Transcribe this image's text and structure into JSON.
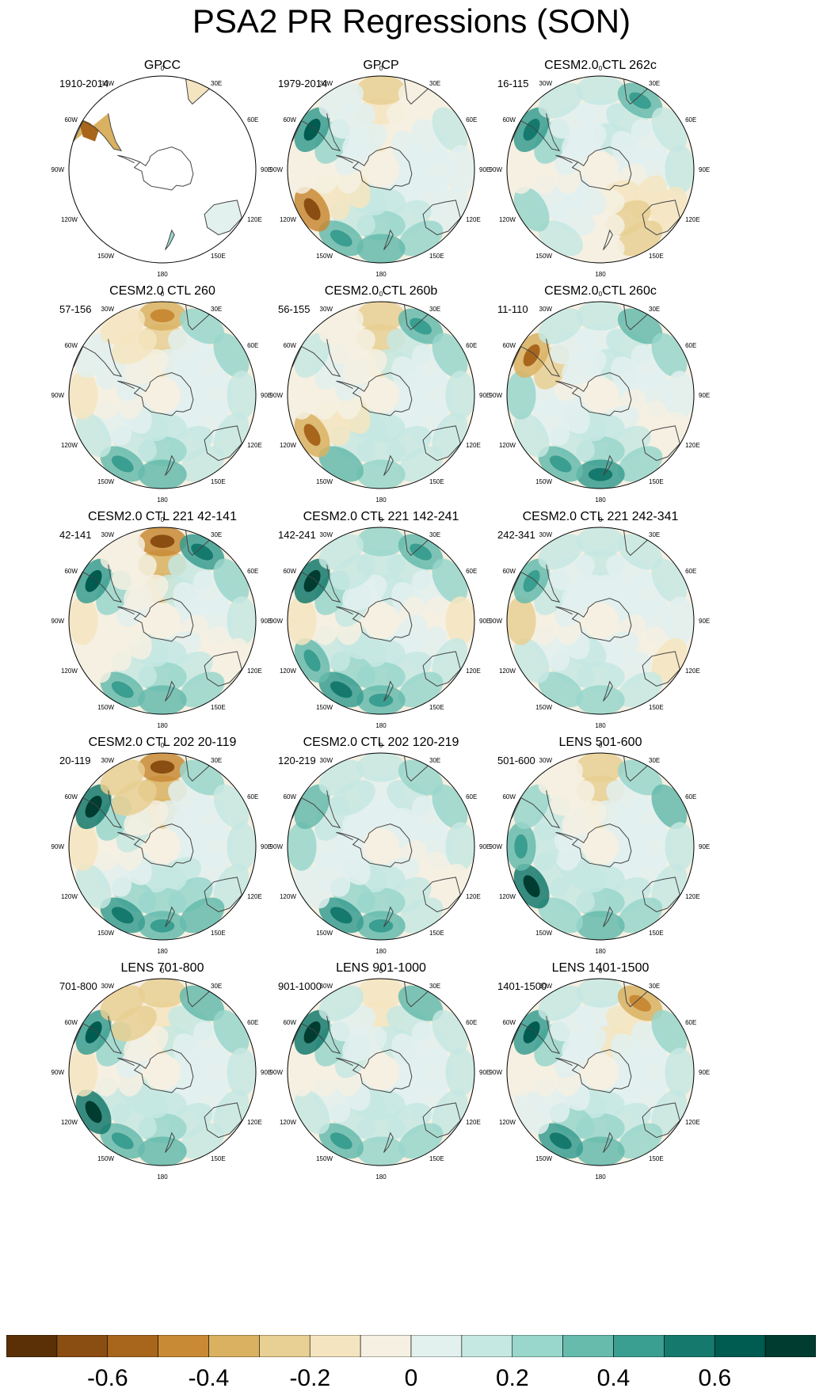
{
  "title": "PSA2 PR Regressions (SON)",
  "longitude_labels": [
    "0",
    "30E",
    "60E",
    "90E",
    "120E",
    "150E",
    "180",
    "150W",
    "120W",
    "90W",
    "60W",
    "30W"
  ],
  "panels": [
    {
      "title": "GPCC",
      "years": "1910-2014",
      "pattern": [
        0,
        0,
        0,
        0,
        0,
        0,
        0,
        0,
        0,
        0,
        0,
        0
      ],
      "land_only": true,
      "note_anoms": [
        -0.4,
        0.2,
        0.3
      ]
    },
    {
      "title": "GPCP",
      "years": "1979-2014",
      "pattern": [
        -0.25,
        -0.1,
        0.1,
        0.05,
        0.05,
        0.2,
        0.3,
        0.35,
        -0.45,
        -0.1,
        0.45,
        0.05
      ]
    },
    {
      "title": "CESM2.0 CTL 262c",
      "years": "16-115",
      "pattern": [
        0.1,
        0.35,
        0.15,
        0.1,
        -0.2,
        -0.3,
        -0.1,
        0.15,
        0.2,
        -0.1,
        0.4,
        0.1
      ]
    },
    {
      "title": "CESM2.0 CTL 260",
      "years": "57-156",
      "pattern": [
        -0.35,
        0.2,
        0.2,
        0.1,
        0.1,
        0.15,
        0.3,
        0.35,
        0.1,
        -0.15,
        0.05,
        -0.15
      ]
    },
    {
      "title": "CESM2.0 CTL 260b",
      "years": "56-155",
      "pattern": [
        -0.3,
        0.35,
        0.2,
        0.1,
        0.1,
        0.15,
        0.25,
        0.3,
        -0.4,
        -0.1,
        0.1,
        -0.1
      ]
    },
    {
      "title": "CESM2.0 CTL 260c",
      "years": "11-110",
      "pattern": [
        0.1,
        0.3,
        0.2,
        0.05,
        -0.1,
        0.2,
        0.4,
        0.35,
        0.1,
        0.2,
        -0.4,
        0.1
      ]
    },
    {
      "title": "CESM2.0 CTL 221 42-141",
      "years": "42-141",
      "pattern": [
        -0.45,
        0.4,
        0.2,
        0.1,
        -0.1,
        0.2,
        0.3,
        0.35,
        -0.1,
        -0.15,
        0.45,
        -0.1
      ]
    },
    {
      "title": "CESM2.0 CTL 221 142-241",
      "years": "142-241",
      "pattern": [
        0.2,
        0.35,
        0.2,
        -0.15,
        0.1,
        0.2,
        0.35,
        0.4,
        0.35,
        -0.15,
        0.5,
        0.15
      ]
    },
    {
      "title": "CESM2.0 CTL 221 242-341",
      "years": "242-341",
      "pattern": [
        0.15,
        0.1,
        0.1,
        0.05,
        -0.15,
        0.1,
        0.2,
        0.25,
        0.1,
        -0.25,
        0.35,
        0.1
      ]
    },
    {
      "title": "CESM2.0 CTL 202 20-119",
      "years": "20-119",
      "pattern": [
        -0.45,
        0.2,
        0.1,
        0.1,
        0.1,
        0.3,
        0.35,
        0.4,
        0.1,
        -0.15,
        0.5,
        -0.3
      ]
    },
    {
      "title": "CESM2.0 CTL 202 120-219",
      "years": "120-219",
      "pattern": [
        0.1,
        0.25,
        0.2,
        0.1,
        -0.1,
        0.15,
        0.35,
        0.4,
        0.05,
        0.2,
        0.3,
        0.15
      ]
    },
    {
      "title": "LENS 501-600",
      "years": "501-600",
      "pattern": [
        -0.3,
        0.2,
        0.3,
        0.1,
        0.1,
        0.2,
        0.3,
        0.25,
        0.5,
        0.35,
        0.2,
        -0.1
      ]
    },
    {
      "title": "LENS 701-800",
      "years": "701-800",
      "pattern": [
        -0.25,
        0.3,
        0.2,
        0.1,
        0.1,
        0.15,
        0.3,
        0.35,
        0.5,
        -0.15,
        0.45,
        -0.3
      ]
    },
    {
      "title": "LENS 901-1000",
      "years": "901-1000",
      "pattern": [
        -0.2,
        0.3,
        0.15,
        0.1,
        0.1,
        0.2,
        0.25,
        0.35,
        0.1,
        -0.1,
        0.5,
        0.1
      ]
    },
    {
      "title": "LENS 1401-1500",
      "years": "1401-1500",
      "pattern": [
        0.1,
        -0.35,
        0.2,
        0.1,
        0.1,
        0.2,
        0.3,
        0.4,
        0.05,
        -0.1,
        0.45,
        0.1
      ]
    }
  ],
  "colorbar": {
    "colors": [
      "#5b3006",
      "#8a4e12",
      "#a8661c",
      "#c88a35",
      "#d9b160",
      "#e8cf93",
      "#f4e5c0",
      "#f5f0e2",
      "#e2f0ee",
      "#c5e8e2",
      "#99d6cb",
      "#66bbad",
      "#3a9e90",
      "#157a6d",
      "#005b50",
      "#003c30"
    ],
    "levels": [
      -0.7,
      -0.6,
      -0.5,
      -0.4,
      -0.3,
      -0.2,
      -0.1,
      0,
      0.1,
      0.2,
      0.3,
      0.4,
      0.5,
      0.6,
      0.7
    ],
    "labels": [
      "-0.6",
      "-0.4",
      "-0.2",
      "0",
      "0.2",
      "0.4",
      "0.6"
    ]
  }
}
